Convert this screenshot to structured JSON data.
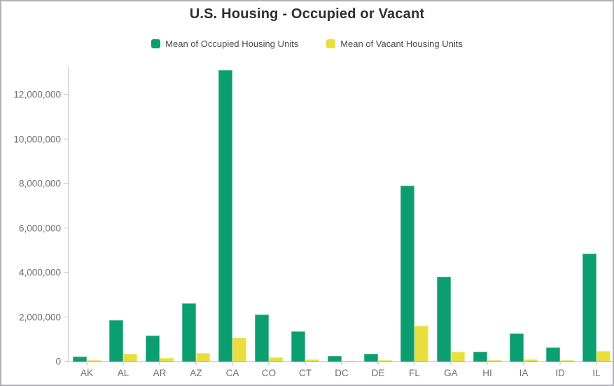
{
  "chart_data": {
    "type": "bar",
    "title": "U.S. Housing - Occupied or Vacant",
    "categories": [
      "AK",
      "AL",
      "AR",
      "AZ",
      "CA",
      "CO",
      "CT",
      "DC",
      "DE",
      "FL",
      "GA",
      "HI",
      "IA",
      "ID",
      "IL"
    ],
    "series": [
      {
        "name": "Mean of Occupied Housing Units",
        "color": "#0b9e70",
        "values": [
          230000,
          1850000,
          1150000,
          2600000,
          13100000,
          2100000,
          1350000,
          250000,
          340000,
          7900000,
          3800000,
          430000,
          1250000,
          620000,
          4850000
        ]
      },
      {
        "name": "Mean of Vacant Housing Units",
        "color": "#e8de3e",
        "values": [
          70000,
          350000,
          170000,
          380000,
          1080000,
          200000,
          100000,
          30000,
          60000,
          1600000,
          450000,
          70000,
          110000,
          70000,
          470000
        ]
      }
    ],
    "xlabel": "",
    "ylabel": "",
    "ylim": [
      0,
      13260000
    ],
    "yticks": [
      0,
      2000000,
      4000000,
      6000000,
      8000000,
      10000000,
      12000000
    ],
    "grid": false,
    "legend_position": "top"
  }
}
